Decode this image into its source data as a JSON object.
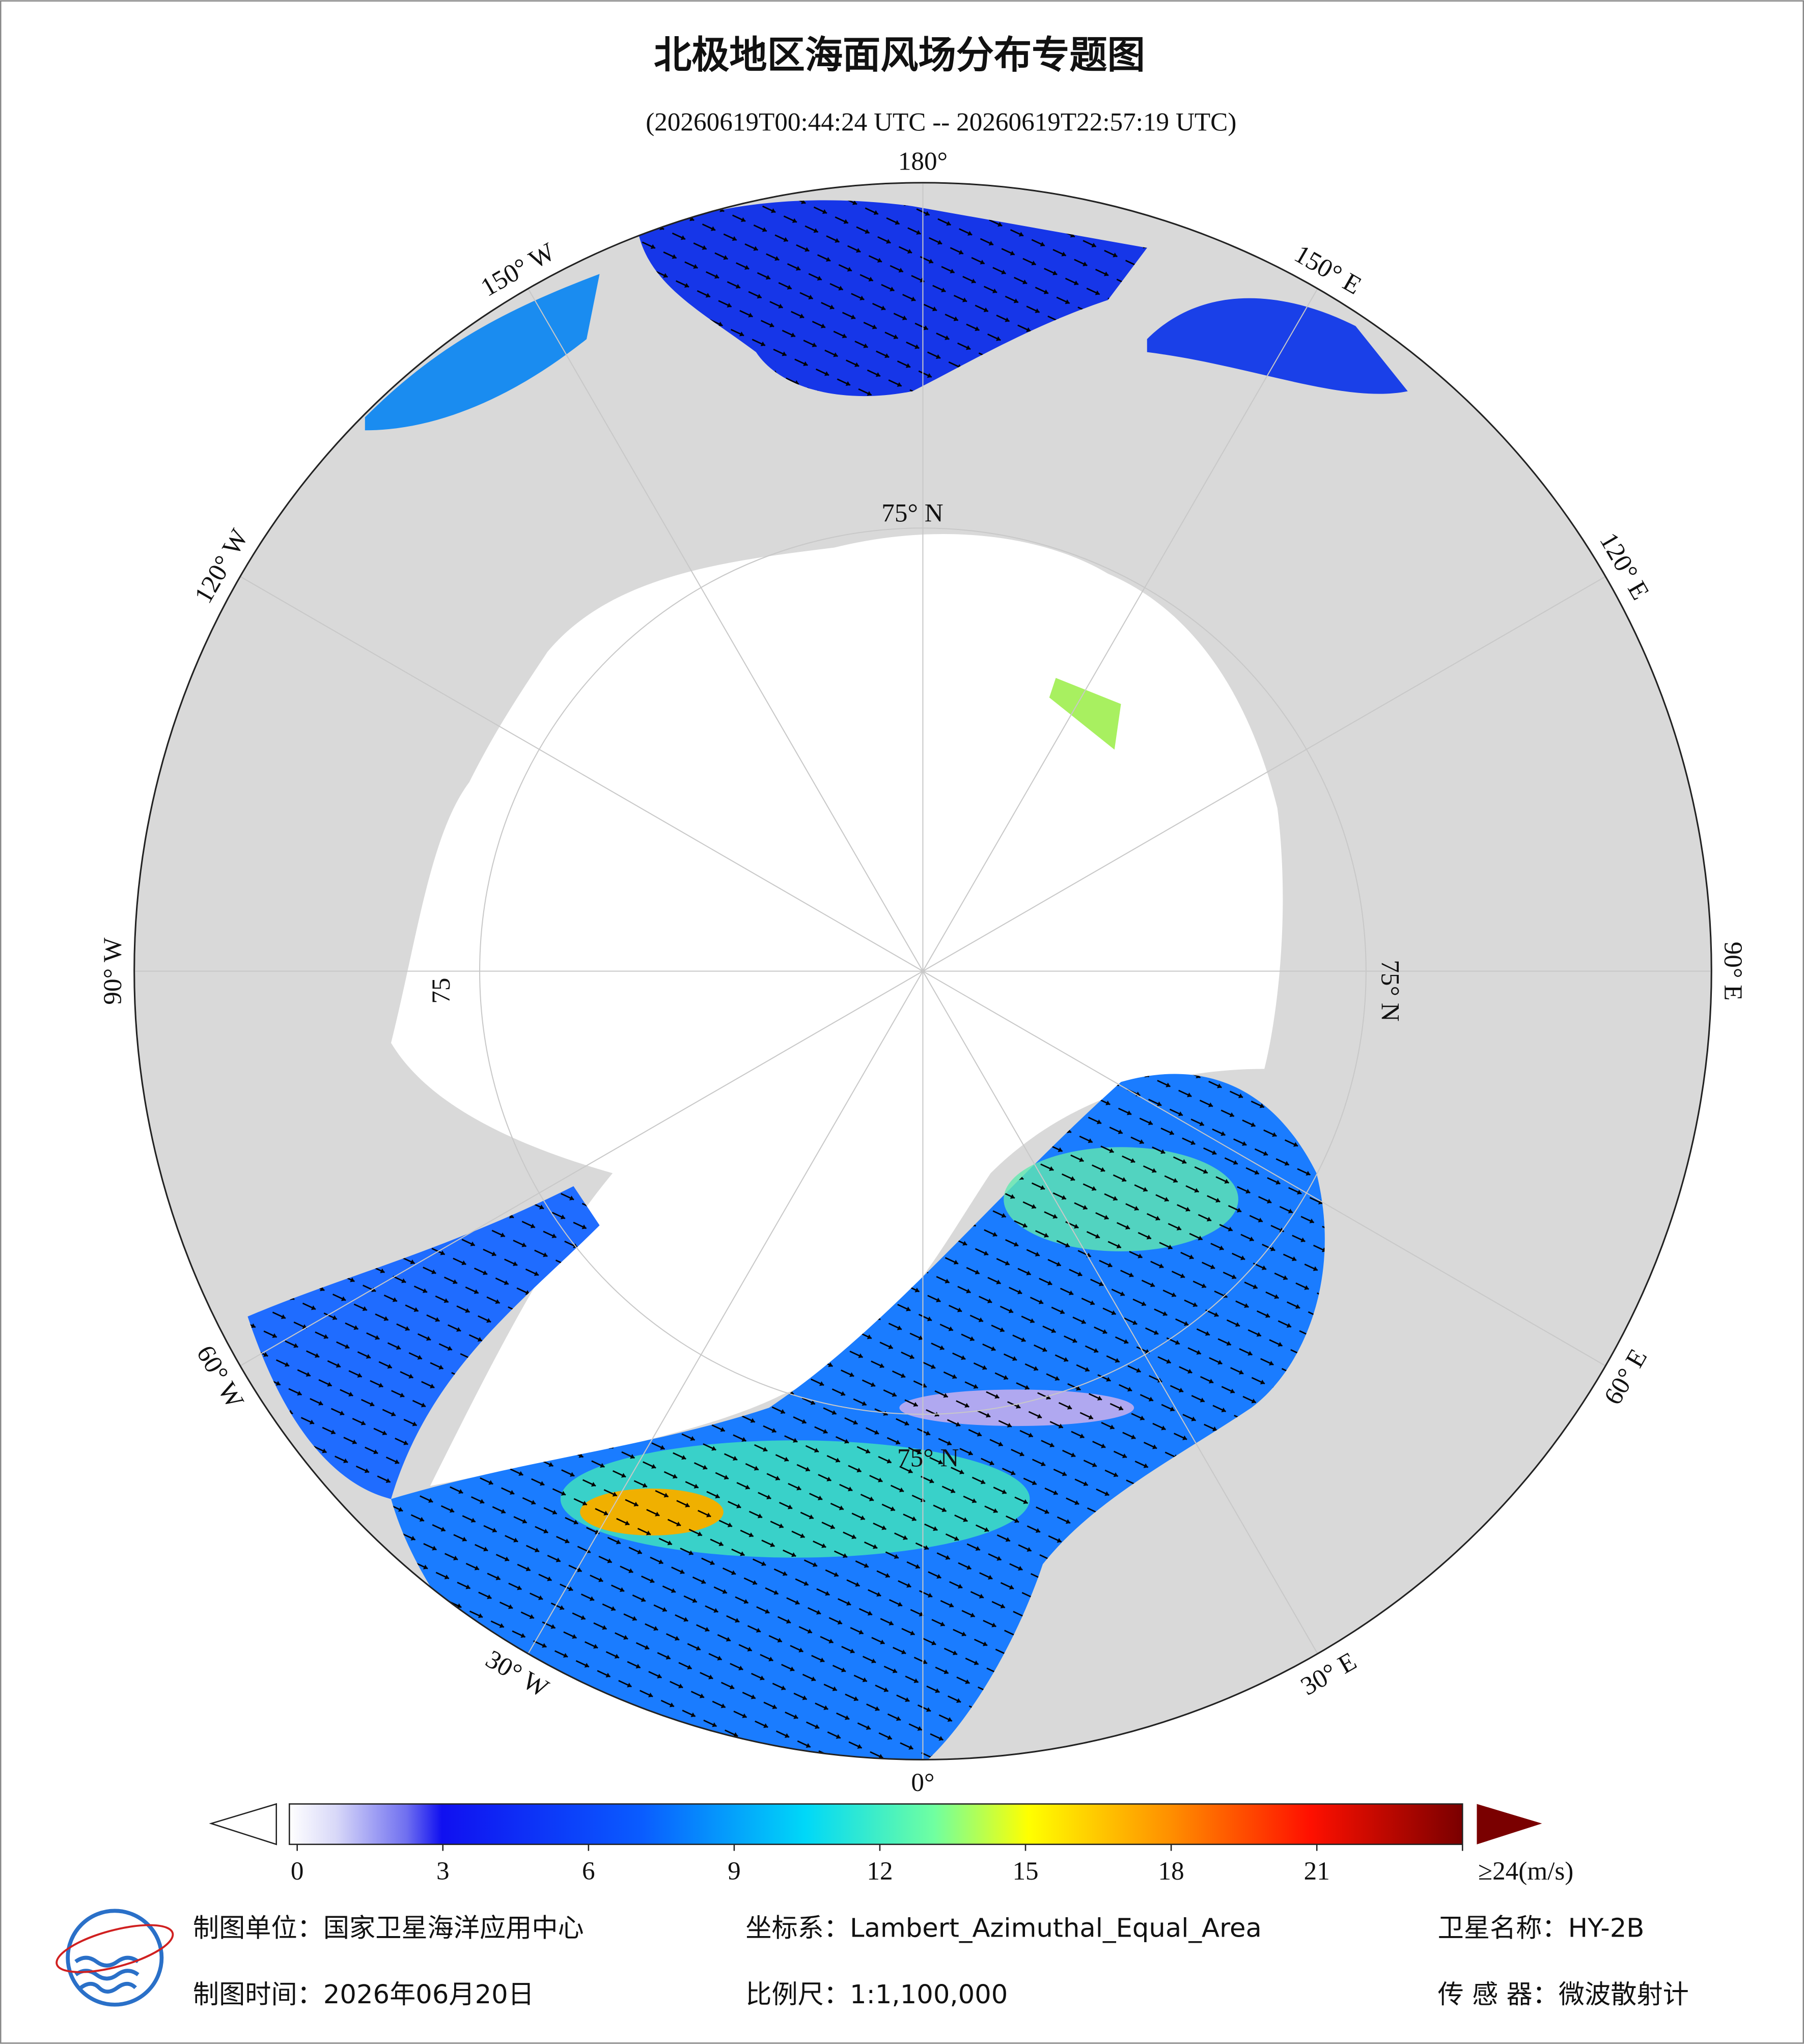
{
  "header": {
    "title": "北极地区海面风场分布专题图",
    "subtitle": "(20260619T00:44:24 UTC -- 20260619T22:57:19 UTC)"
  },
  "map": {
    "longitude_labels": [
      "180°",
      "150° E",
      "120° E",
      "90° E",
      "60° E",
      "30° E",
      "0°",
      "30° W",
      "60° W",
      "90° W",
      "120° W",
      "150° W"
    ],
    "latitude_labels": [
      "75° N",
      "75° N",
      "75° N",
      "75"
    ]
  },
  "colorbar": {
    "range": [
      0,
      24
    ],
    "ticks": [
      0,
      3,
      6,
      9,
      12,
      15,
      18,
      21,
      {
        "value": 24,
        "label": "≥24(m/s)"
      }
    ]
  },
  "footer": {
    "items": [
      "制图单位：国家卫星海洋应用中心",
      "坐标系：Lambert_Azimuthal_Equal_Area",
      "卫星名称：HY-2B",
      "制图时间：2026年06月20日",
      "比例尺：1:1,100,000",
      "传 感 器：微波散射计"
    ]
  }
}
